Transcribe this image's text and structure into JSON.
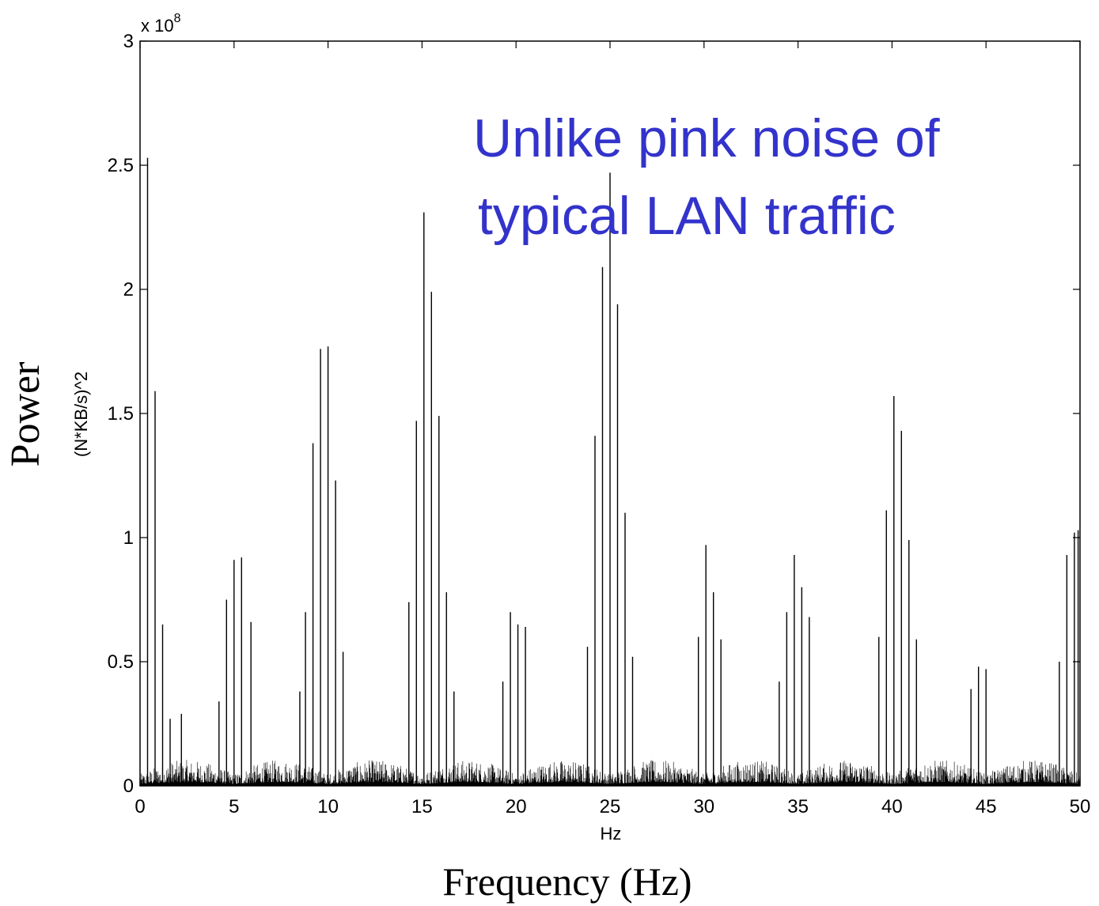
{
  "chart_data": {
    "type": "bar",
    "title": "",
    "xlabel": "Frequency (Hz)",
    "xlabel_small": "Hz",
    "ylabel": "Power",
    "ylabel_units": "(N*KB/s)^2",
    "y_exponent_label": "x 10",
    "y_exponent": "8",
    "xlim": [
      0,
      50
    ],
    "ylim": [
      0,
      3
    ],
    "y_multiplier": 100000000,
    "grid": false,
    "x_ticks": [
      0,
      5,
      10,
      15,
      20,
      25,
      30,
      35,
      40,
      45,
      50
    ],
    "x_tick_labels": [
      "0",
      "5",
      "10",
      "15",
      "20",
      "25",
      "30",
      "35",
      "40",
      "45",
      "50"
    ],
    "y_ticks": [
      0,
      0.5,
      1,
      1.5,
      2,
      2.5,
      3
    ],
    "y_tick_labels": [
      "0",
      "0.5",
      "1",
      "1.5",
      "2",
      "2.5",
      "3"
    ],
    "annotation": {
      "lines": [
        "Unlike pink noise of",
        "typical LAN traffic"
      ],
      "color": "#3333cc"
    },
    "line_color": "#000000",
    "peaks": {
      "x": [
        0.4,
        0.8,
        1.2,
        1.6,
        2.2,
        4.2,
        4.6,
        5.0,
        5.4,
        5.9,
        8.5,
        8.8,
        9.2,
        9.6,
        10.0,
        10.4,
        10.8,
        14.3,
        14.7,
        15.1,
        15.5,
        15.9,
        16.3,
        16.7,
        19.3,
        19.7,
        20.1,
        20.5,
        23.8,
        24.2,
        24.6,
        25.0,
        25.4,
        25.8,
        26.2,
        29.7,
        30.1,
        30.5,
        30.9,
        34.0,
        34.4,
        34.8,
        35.2,
        35.6,
        39.3,
        39.7,
        40.1,
        40.5,
        40.9,
        41.3,
        44.2,
        44.6,
        45.0,
        48.9,
        49.3,
        49.7,
        49.9
      ],
      "y": [
        2.53,
        1.59,
        0.65,
        0.27,
        0.29,
        0.34,
        0.75,
        0.91,
        0.92,
        0.66,
        0.38,
        0.7,
        1.38,
        1.76,
        1.77,
        1.23,
        0.54,
        0.74,
        1.47,
        2.31,
        1.99,
        1.49,
        0.78,
        0.38,
        0.42,
        0.7,
        0.65,
        0.64,
        0.56,
        1.41,
        2.09,
        2.47,
        1.94,
        1.1,
        0.52,
        0.6,
        0.97,
        0.78,
        0.59,
        0.42,
        0.7,
        0.93,
        0.8,
        0.68,
        0.6,
        1.11,
        1.57,
        1.43,
        0.99,
        0.59,
        0.39,
        0.48,
        0.47,
        0.5,
        0.93,
        1.02,
        1.03
      ]
    }
  }
}
